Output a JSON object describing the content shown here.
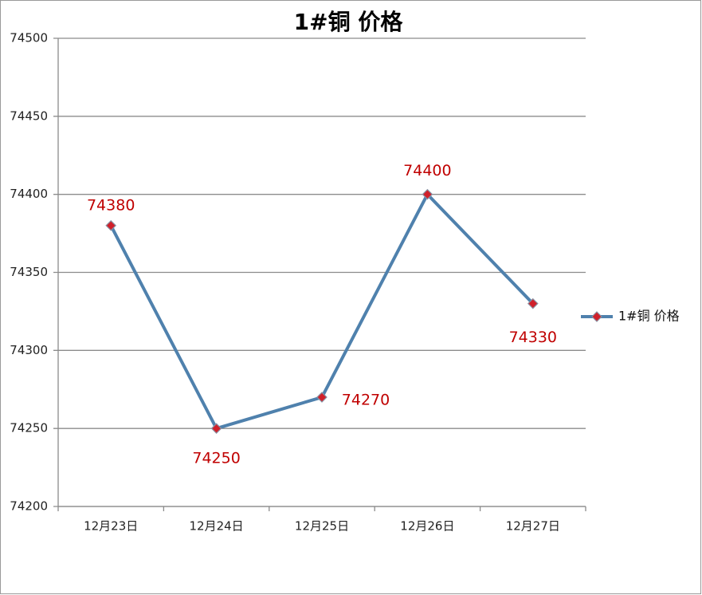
{
  "chart_data": {
    "type": "line",
    "title": "1#铜 价格",
    "categories": [
      "12月23日",
      "12月24日",
      "12月25日",
      "12月26日",
      "12月27日"
    ],
    "series": [
      {
        "name": "1#铜 价格",
        "color": "#4f81ad",
        "marker_color": "#d0202a",
        "values": [
          74380,
          74250,
          74270,
          74400,
          74330
        ]
      }
    ],
    "ylim": [
      74200,
      74500
    ],
    "yticks": [
      74200,
      74250,
      74300,
      74350,
      74400,
      74450,
      74500
    ],
    "grid": true,
    "legend": "right"
  }
}
